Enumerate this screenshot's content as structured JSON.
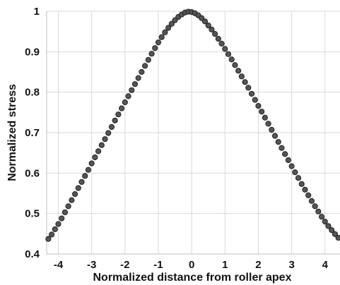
{
  "chart_data": {
    "type": "scatter",
    "title": "",
    "xlabel": "Normalized distance from roller apex",
    "ylabel": "Normalized stress",
    "xlim": [
      -4.35,
      4.45
    ],
    "ylim": [
      0.4,
      1.0
    ],
    "x_ticks": [
      "-4",
      "-3",
      "-2",
      "-1",
      "0",
      "1",
      "2",
      "3",
      "4"
    ],
    "y_ticks": [
      "0.4",
      "0.5",
      "0.6",
      "0.7",
      "0.8",
      "0.9",
      "1"
    ],
    "grid": "vertical and horizontal",
    "legend": "none",
    "marker_color": "#555555",
    "marker_edge_color": "#222222",
    "series": [
      {
        "x": [
          -4.3,
          -4.2,
          -4.1,
          -4.0,
          -3.9,
          -3.8,
          -3.7,
          -3.6,
          -3.5,
          -3.4,
          -3.3,
          -3.2,
          -3.1,
          -3.0,
          -2.9,
          -2.8,
          -2.7,
          -2.6,
          -2.5,
          -2.4,
          -2.3,
          -2.2,
          -2.1,
          -2.0,
          -1.9,
          -1.8,
          -1.7,
          -1.6,
          -1.5,
          -1.4,
          -1.3,
          -1.2,
          -1.1,
          -1.0,
          -0.9,
          -0.8,
          -0.7,
          -0.6,
          -0.5,
          -0.4,
          -0.3,
          -0.2,
          -0.1,
          0.0,
          0.1,
          0.2,
          0.3,
          0.4,
          0.5,
          0.6,
          0.7,
          0.8,
          0.9,
          1.0,
          1.1,
          1.2,
          1.3,
          1.4,
          1.5,
          1.6,
          1.7,
          1.8,
          1.9,
          2.0,
          2.1,
          2.2,
          2.3,
          2.4,
          2.5,
          2.6,
          2.7,
          2.8,
          2.9,
          3.0,
          3.1,
          3.2,
          3.3,
          3.4,
          3.5,
          3.6,
          3.7,
          3.8,
          3.9,
          4.0,
          4.1,
          4.2,
          4.3,
          4.4
        ],
        "y": [
          0.437,
          0.448,
          0.461,
          0.474,
          0.488,
          0.503,
          0.518,
          0.533,
          0.548,
          0.563,
          0.578,
          0.593,
          0.608,
          0.624,
          0.639,
          0.654,
          0.669,
          0.684,
          0.699,
          0.714,
          0.73,
          0.745,
          0.76,
          0.775,
          0.79,
          0.805,
          0.82,
          0.835,
          0.85,
          0.865,
          0.88,
          0.895,
          0.909,
          0.923,
          0.936,
          0.948,
          0.959,
          0.969,
          0.978,
          0.986,
          0.992,
          0.997,
          0.999,
          0.998,
          0.995,
          0.99,
          0.983,
          0.975,
          0.965,
          0.955,
          0.944,
          0.932,
          0.92,
          0.907,
          0.894,
          0.881,
          0.867,
          0.853,
          0.839,
          0.825,
          0.811,
          0.796,
          0.781,
          0.766,
          0.752,
          0.737,
          0.722,
          0.707,
          0.692,
          0.677,
          0.662,
          0.647,
          0.632,
          0.617,
          0.602,
          0.588,
          0.573,
          0.559,
          0.545,
          0.531,
          0.518,
          0.505,
          0.492,
          0.48,
          0.469,
          0.459,
          0.449,
          0.44
        ]
      }
    ]
  }
}
